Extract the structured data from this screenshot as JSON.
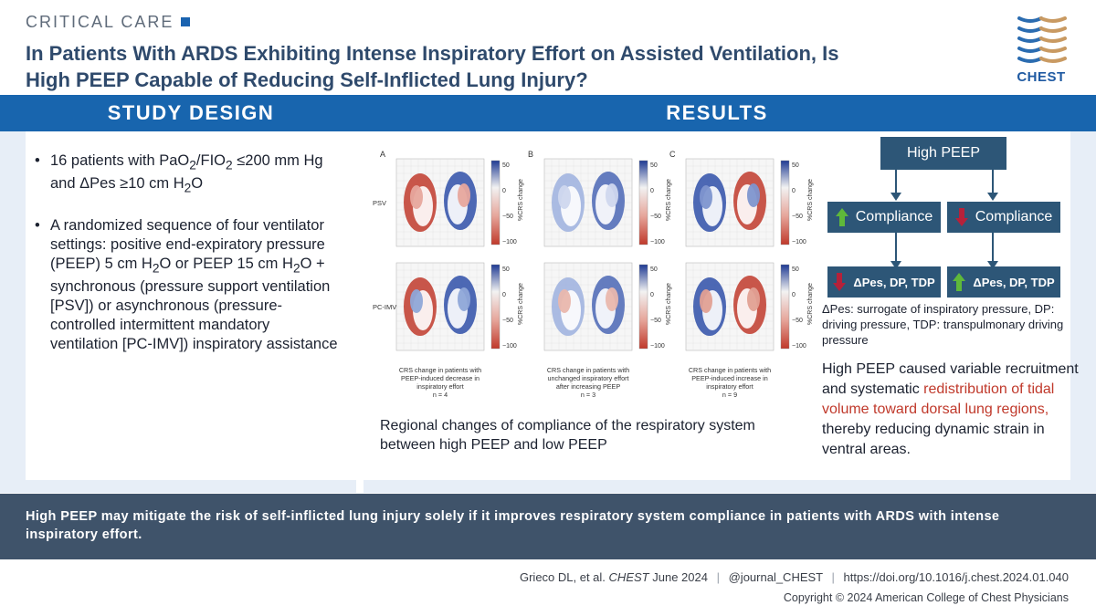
{
  "header": {
    "kicker": "CRITICAL CARE",
    "title_line1": "In Patients With ARDS Exhibiting Intense Inspiratory Effort on Assisted Ventilation, Is",
    "title_line2": "High PEEP Capable of Reducing Self-Inflicted Lung Injury?",
    "logo_text": "CHEST"
  },
  "study_design": {
    "heading": "STUDY DESIGN",
    "bullet": "•",
    "b1": {
      "t1": "16 patients with PaO",
      "s1": "2",
      "t2": "/FIO",
      "s2": "2",
      "t3": " ≤200 mm Hg",
      "t4": "and ΔPes ≥10 cm H",
      "s3": "2",
      "t5": "O"
    },
    "b2": {
      "t1": "A randomized sequence of four ventilator settings: positive end-expiratory pressure (PEEP) 5 cm H",
      "s1": "2",
      "t2": "O or PEEP 15 cm H",
      "s2": "2",
      "t3": "O + synchronous (pressure support ventilation [PSV]) or asynchronous (pressure-controlled intermittent mandatory ventilation [PC-IMV]) inspiratory assistance"
    }
  },
  "results": {
    "heading": "RESULTS",
    "figure": {
      "panels": [
        "A",
        "B",
        "C"
      ],
      "rows": [
        "PSV",
        "PC-IMV"
      ],
      "ticks": [
        "50",
        "0",
        "−50",
        "−100"
      ],
      "cbar_label": "%CRS change",
      "captions": [
        [
          "CRS change in patients with",
          "PEEP-induced decrease in",
          "inspiratory effort",
          "n = 4"
        ],
        [
          "CRS change in patients with",
          "unchanged inspiratory effort",
          "after increasing PEEP",
          "n = 3"
        ],
        [
          "CRS change in patients with",
          "PEEP-induced increase in",
          "inspiratory effort",
          "n = 9"
        ]
      ]
    },
    "caption": "Regional changes of compliance of the respiratory system between high PEEP and low PEEP",
    "flow": {
      "top": "High PEEP",
      "left_mid": "Compliance",
      "right_mid": "Compliance",
      "left_bottom": "ΔPes, DP, TDP",
      "right_bottom": "ΔPes, DP, TDP"
    },
    "legend": "ΔPes: surrogate of inspiratory pressure, DP: driving pressure, TDP: transpulmonary driving pressure",
    "summary_a": "High PEEP caused variable recruitment and systematic",
    "summary_b": "redistribution of tidal volume toward dorsal lung regions,",
    "summary_c": "thereby reducing dynamic strain in ventral areas."
  },
  "footer": {
    "conclusion": "High PEEP may mitigate the risk of self-inflicted lung injury solely if it improves respiratory system compliance in patients with ARDS with intense inspiratory effort.",
    "cite_authors": "Grieco DL, et al.",
    "cite_journal": "CHEST",
    "cite_date": "June 2024",
    "separator": "|",
    "handle": "@journal_CHEST",
    "doi": "https://doi.org/10.1016/j.chest.2024.01.040",
    "copyright": "Copyright © 2024 American College of Chest Physicians"
  },
  "colors": {
    "brand_blue": "#1865ae",
    "navy": "#2f4a6c",
    "panel_bg": "#e7eef7",
    "footer_band": "#3f536a",
    "up_green": "#5fb83a",
    "down_red": "#b5213a",
    "highlight_red": "#c0392b"
  }
}
